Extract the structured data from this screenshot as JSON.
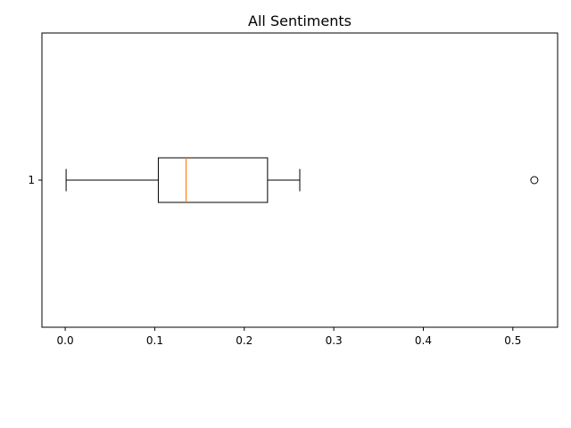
{
  "chart_data": {
    "type": "box",
    "orientation": "horizontal",
    "title": "All Sentiments",
    "xlabel": "",
    "ylabel": "",
    "xlim": [
      -0.026,
      0.55
    ],
    "xticks": [
      0.0,
      0.1,
      0.2,
      0.3,
      0.4,
      0.5
    ],
    "xtick_labels": [
      "0.0",
      "0.1",
      "0.2",
      "0.3",
      "0.4",
      "0.5"
    ],
    "categories": [
      "1"
    ],
    "boxes": [
      {
        "label": "1",
        "whisker_low": 0.001,
        "q1": 0.104,
        "median": 0.135,
        "q3": 0.226,
        "whisker_high": 0.262,
        "outliers": [
          0.524
        ]
      }
    ],
    "colors": {
      "box": "#000000",
      "median": "#ff7f0e",
      "outlier": "#000000"
    },
    "grid": false
  }
}
